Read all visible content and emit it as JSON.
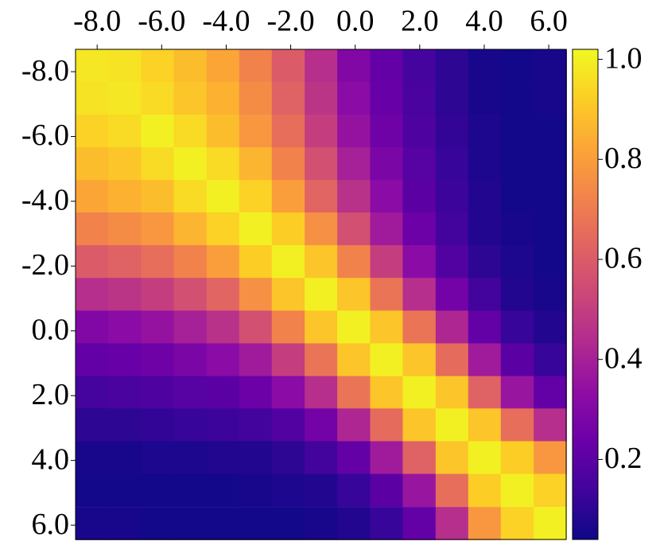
{
  "chart_data": {
    "type": "heatmap",
    "colormap": "plasma",
    "y_inverted": true,
    "x": [
      -8.16,
      -7.15,
      -6.13,
      -5.12,
      -4.1,
      -3.09,
      -2.08,
      -1.06,
      -0.05,
      0.97,
      1.98,
      3.0,
      4.01,
      5.02,
      6.04
    ],
    "y": [
      -8.19,
      -7.18,
      -6.17,
      -5.16,
      -4.15,
      -3.15,
      -2.14,
      -1.13,
      -0.12,
      0.89,
      1.9,
      2.9,
      3.91,
      4.92,
      5.94
    ],
    "z": [
      [
        0.98,
        0.97,
        0.93,
        0.88,
        0.82,
        0.72,
        0.6,
        0.45,
        0.3,
        0.22,
        0.15,
        0.1,
        0.06,
        0.05,
        0.06
      ],
      [
        0.97,
        0.98,
        0.95,
        0.9,
        0.85,
        0.75,
        0.62,
        0.47,
        0.32,
        0.23,
        0.16,
        0.1,
        0.06,
        0.05,
        0.06
      ],
      [
        0.93,
        0.95,
        1.0,
        0.95,
        0.88,
        0.78,
        0.66,
        0.5,
        0.35,
        0.25,
        0.17,
        0.11,
        0.07,
        0.05,
        0.05
      ],
      [
        0.88,
        0.9,
        0.95,
        1.0,
        0.95,
        0.86,
        0.72,
        0.56,
        0.4,
        0.28,
        0.19,
        0.12,
        0.07,
        0.05,
        0.05
      ],
      [
        0.82,
        0.85,
        0.88,
        0.95,
        1.0,
        0.93,
        0.8,
        0.63,
        0.46,
        0.32,
        0.2,
        0.13,
        0.08,
        0.05,
        0.05
      ],
      [
        0.72,
        0.75,
        0.78,
        0.86,
        0.93,
        1.0,
        0.92,
        0.76,
        0.56,
        0.38,
        0.24,
        0.14,
        0.08,
        0.06,
        0.05
      ],
      [
        0.6,
        0.62,
        0.66,
        0.72,
        0.8,
        0.92,
        1.0,
        0.9,
        0.72,
        0.5,
        0.32,
        0.18,
        0.1,
        0.07,
        0.05
      ],
      [
        0.45,
        0.47,
        0.5,
        0.56,
        0.63,
        0.76,
        0.9,
        1.0,
        0.9,
        0.68,
        0.45,
        0.26,
        0.14,
        0.08,
        0.06
      ],
      [
        0.3,
        0.32,
        0.35,
        0.4,
        0.46,
        0.56,
        0.72,
        0.9,
        1.0,
        0.9,
        0.68,
        0.42,
        0.22,
        0.12,
        0.08
      ],
      [
        0.22,
        0.23,
        0.25,
        0.28,
        0.32,
        0.38,
        0.5,
        0.68,
        0.9,
        1.0,
        0.9,
        0.65,
        0.38,
        0.2,
        0.12
      ],
      [
        0.15,
        0.16,
        0.17,
        0.19,
        0.2,
        0.24,
        0.32,
        0.45,
        0.68,
        0.9,
        1.0,
        0.9,
        0.62,
        0.36,
        0.22
      ],
      [
        0.1,
        0.1,
        0.11,
        0.12,
        0.13,
        0.14,
        0.18,
        0.26,
        0.42,
        0.65,
        0.9,
        1.0,
        0.9,
        0.66,
        0.45
      ],
      [
        0.06,
        0.06,
        0.07,
        0.07,
        0.08,
        0.08,
        0.1,
        0.14,
        0.22,
        0.38,
        0.62,
        0.9,
        1.0,
        0.92,
        0.78
      ],
      [
        0.05,
        0.05,
        0.05,
        0.05,
        0.05,
        0.06,
        0.07,
        0.08,
        0.12,
        0.2,
        0.36,
        0.66,
        0.92,
        1.0,
        0.93
      ],
      [
        0.06,
        0.06,
        0.05,
        0.05,
        0.05,
        0.05,
        0.05,
        0.06,
        0.08,
        0.12,
        0.22,
        0.45,
        0.78,
        0.93,
        1.0
      ]
    ],
    "xlim": [
      -8.67,
      6.54
    ],
    "ylim": [
      -8.69,
      6.44
    ],
    "xticks": [
      {
        "value": -8,
        "label": "-8.0"
      },
      {
        "value": -6,
        "label": "-6.0"
      },
      {
        "value": -4,
        "label": "-4.0"
      },
      {
        "value": -2,
        "label": "-2.0"
      },
      {
        "value": 0,
        "label": "0.0"
      },
      {
        "value": 2,
        "label": "2.0"
      },
      {
        "value": 4,
        "label": "4.0"
      },
      {
        "value": 6,
        "label": "6.0"
      }
    ],
    "yticks": [
      {
        "value": -8,
        "label": "-8.0"
      },
      {
        "value": -6,
        "label": "-6.0"
      },
      {
        "value": -4,
        "label": "-4.0"
      },
      {
        "value": -2,
        "label": "-2.0"
      },
      {
        "value": 0,
        "label": "0.0"
      },
      {
        "value": 2,
        "label": "2.0"
      },
      {
        "value": 4,
        "label": "4.0"
      },
      {
        "value": 6,
        "label": "6.0"
      }
    ],
    "zlim": [
      0.04,
      1.02
    ],
    "zticks": [
      0.2,
      0.4,
      0.6,
      0.8,
      {
        "value": 1,
        "label": "1.0"
      }
    ]
  }
}
